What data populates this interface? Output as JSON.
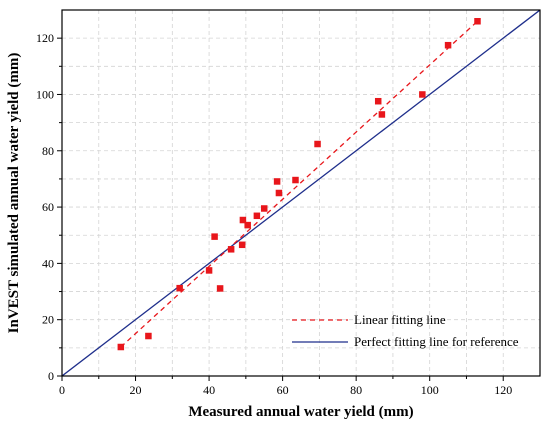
{
  "chart_data": {
    "type": "scatter",
    "xlabel": "Measured annual water yield (mm)",
    "ylabel": "InVEST simulated annual water yield (mm)",
    "xlim": [
      0,
      130
    ],
    "ylim": [
      0,
      130
    ],
    "x_ticks": [
      0,
      20,
      40,
      60,
      80,
      100,
      120
    ],
    "y_ticks": [
      0,
      20,
      40,
      60,
      80,
      100,
      120
    ],
    "grid": true,
    "legend_position": "bottom-right",
    "points": {
      "color": "#e8161b",
      "x": [
        16,
        23.5,
        32,
        40,
        41.5,
        43,
        46,
        49,
        49.2,
        50.5,
        53,
        55,
        58.5,
        59,
        63.5,
        69.5,
        86,
        87,
        98,
        105,
        113
      ],
      "y": [
        10.3,
        14.2,
        31.2,
        37.5,
        49.5,
        31.1,
        45,
        46.6,
        55.4,
        53.6,
        56.9,
        59.5,
        69.1,
        65,
        69.6,
        82.4,
        97.6,
        92.9,
        100,
        117.5,
        126
      ]
    },
    "series": [
      {
        "name": "Linear fitting line",
        "style": "dashed",
        "color": "#e8161b",
        "x": [
          16,
          113
        ],
        "y": [
          10.3,
          126
        ]
      },
      {
        "name": "Perfect fitting line for reference",
        "style": "solid",
        "color": "#1f2f8c",
        "x": [
          0,
          130
        ],
        "y": [
          0,
          130
        ]
      }
    ]
  }
}
